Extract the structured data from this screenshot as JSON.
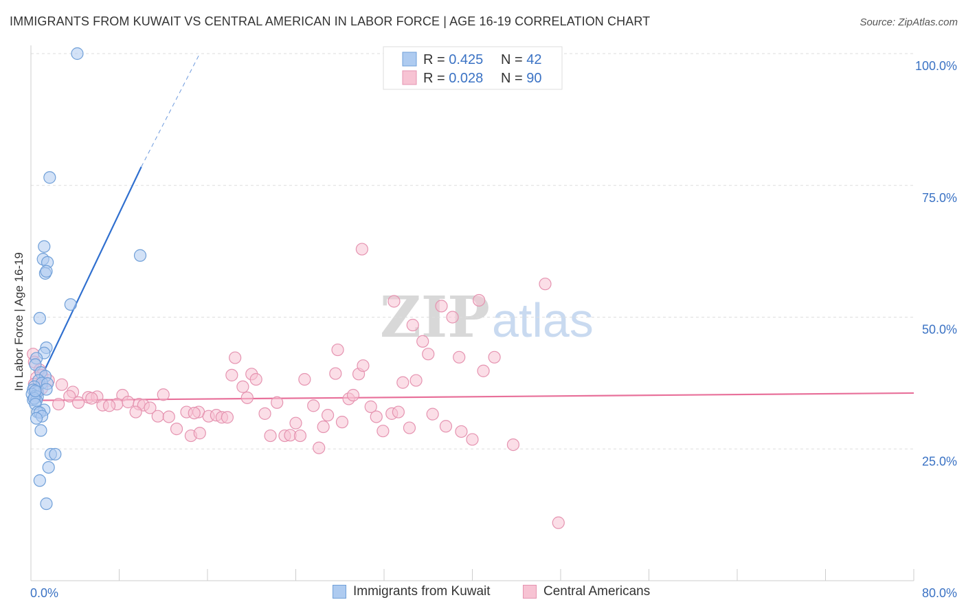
{
  "title": "IMMIGRANTS FROM KUWAIT VS CENTRAL AMERICAN IN LABOR FORCE | AGE 16-19 CORRELATION CHART",
  "source": "Source: ZipAtlas.com",
  "watermark": {
    "part1": "ZIP",
    "part2": "atlas"
  },
  "legend_top": [
    {
      "r_label": "R = ",
      "r_value": "0.425",
      "n_label": "N = ",
      "n_value": "42"
    },
    {
      "r_label": "R = ",
      "r_value": "0.028",
      "n_label": "N = ",
      "n_value": "90"
    }
  ],
  "legend_bottom": [
    {
      "label": "Immigrants from Kuwait"
    },
    {
      "label": "Central Americans"
    }
  ],
  "colors": {
    "kuwait_fill": "#aecbf0",
    "kuwait_stroke": "#6f9fd8",
    "kuwait_line": "#2f6fcf",
    "central_fill": "#f7c3d3",
    "central_stroke": "#e593b0",
    "central_line": "#e8709a",
    "axis_text": "#3a72c4",
    "grid": "#dddddd"
  },
  "chart_data": {
    "type": "scatter",
    "title": "IMMIGRANTS FROM KUWAIT VS CENTRAL AMERICAN IN LABOR FORCE | AGE 16-19 CORRELATION CHART",
    "xlabel": "",
    "ylabel": "In Labor Force | Age 16-19",
    "xlim": [
      0,
      80
    ],
    "ylim": [
      0,
      102
    ],
    "x_tick_labels": [
      "0.0%",
      "80.0%"
    ],
    "y_ticks": [
      25,
      50,
      75,
      100
    ],
    "y_tick_labels": [
      "25.0%",
      "50.0%",
      "75.0%",
      "100.0%"
    ],
    "grid": true,
    "legend_position": "top-center",
    "series": [
      {
        "name": "Immigrants from Kuwait",
        "r": 0.425,
        "n": 42,
        "trend": {
          "x": [
            0,
            10.0
          ],
          "y": [
            34.5,
            78.5
          ],
          "dashed_to": [
            15.3,
            100.0
          ]
        },
        "points": [
          [
            4.2,
            100.0
          ],
          [
            1.7,
            76.5
          ],
          [
            9.9,
            61.7
          ],
          [
            1.2,
            63.4
          ],
          [
            1.1,
            61.0
          ],
          [
            1.5,
            60.4
          ],
          [
            1.3,
            58.3
          ],
          [
            1.4,
            58.7
          ],
          [
            3.6,
            52.4
          ],
          [
            0.8,
            49.8
          ],
          [
            1.4,
            44.2
          ],
          [
            1.2,
            43.2
          ],
          [
            0.5,
            42.2
          ],
          [
            0.4,
            41.0
          ],
          [
            0.9,
            39.5
          ],
          [
            1.3,
            38.8
          ],
          [
            0.7,
            38.0
          ],
          [
            1.0,
            37.5
          ],
          [
            1.5,
            37.4
          ],
          [
            0.3,
            36.8
          ],
          [
            0.2,
            36.2
          ],
          [
            0.6,
            35.8
          ],
          [
            1.4,
            36.3
          ],
          [
            0.1,
            35.4
          ],
          [
            0.4,
            35.0
          ],
          [
            0.6,
            34.9
          ],
          [
            0.2,
            34.3
          ],
          [
            0.5,
            34.2
          ],
          [
            0.3,
            34.6
          ],
          [
            0.4,
            33.5
          ],
          [
            1.2,
            32.4
          ],
          [
            0.6,
            32.0
          ],
          [
            0.8,
            31.9
          ],
          [
            1.0,
            31.2
          ],
          [
            0.5,
            30.8
          ],
          [
            0.9,
            28.5
          ],
          [
            1.8,
            24.0
          ],
          [
            2.2,
            24.0
          ],
          [
            1.6,
            21.5
          ],
          [
            0.8,
            19.0
          ],
          [
            1.4,
            14.6
          ],
          [
            0.4,
            36.0
          ]
        ]
      },
      {
        "name": "Central Americans",
        "r": 0.028,
        "n": 90,
        "trend": {
          "x": [
            0,
            80
          ],
          "y": [
            34.2,
            35.6
          ]
        },
        "points": [
          [
            0.2,
            43.0
          ],
          [
            0.3,
            41.5
          ],
          [
            0.8,
            40.0
          ],
          [
            1.0,
            39.0
          ],
          [
            0.5,
            38.5
          ],
          [
            1.6,
            38.0
          ],
          [
            0.3,
            37.3
          ],
          [
            2.8,
            37.2
          ],
          [
            1.0,
            36.5
          ],
          [
            0.5,
            35.8
          ],
          [
            3.8,
            35.8
          ],
          [
            3.5,
            35.0
          ],
          [
            5.2,
            34.8
          ],
          [
            6.0,
            34.9
          ],
          [
            5.5,
            34.6
          ],
          [
            8.3,
            35.2
          ],
          [
            12.0,
            35.3
          ],
          [
            2.5,
            33.5
          ],
          [
            4.3,
            33.8
          ],
          [
            6.5,
            33.3
          ],
          [
            7.8,
            33.5
          ],
          [
            8.8,
            33.9
          ],
          [
            7.1,
            33.2
          ],
          [
            9.8,
            33.5
          ],
          [
            10.2,
            33.3
          ],
          [
            10.8,
            32.8
          ],
          [
            9.5,
            32.0
          ],
          [
            11.5,
            31.2
          ],
          [
            12.5,
            31.1
          ],
          [
            14.1,
            32.0
          ],
          [
            15.2,
            32.0
          ],
          [
            16.1,
            31.2
          ],
          [
            16.8,
            31.4
          ],
          [
            17.3,
            31.0
          ],
          [
            14.8,
            31.8
          ],
          [
            17.8,
            31.0
          ],
          [
            13.2,
            28.8
          ],
          [
            14.5,
            27.5
          ],
          [
            15.3,
            28.0
          ],
          [
            18.5,
            42.3
          ],
          [
            18.2,
            39.0
          ],
          [
            19.2,
            36.8
          ],
          [
            19.6,
            34.7
          ],
          [
            20.0,
            39.2
          ],
          [
            20.4,
            38.2
          ],
          [
            21.2,
            31.7
          ],
          [
            21.7,
            27.5
          ],
          [
            22.3,
            33.8
          ],
          [
            23.0,
            27.5
          ],
          [
            23.5,
            27.6
          ],
          [
            24.0,
            29.9
          ],
          [
            24.4,
            27.5
          ],
          [
            24.8,
            38.2
          ],
          [
            25.6,
            33.2
          ],
          [
            26.1,
            25.2
          ],
          [
            26.5,
            29.2
          ],
          [
            26.9,
            31.4
          ],
          [
            27.6,
            39.3
          ],
          [
            27.8,
            43.8
          ],
          [
            28.2,
            30.1
          ],
          [
            28.8,
            34.5
          ],
          [
            29.2,
            35.2
          ],
          [
            29.7,
            39.2
          ],
          [
            30.1,
            40.8
          ],
          [
            30.8,
            33.0
          ],
          [
            31.3,
            31.1
          ],
          [
            31.9,
            28.4
          ],
          [
            32.7,
            31.7
          ],
          [
            32.9,
            53.0
          ],
          [
            33.3,
            32.0
          ],
          [
            33.7,
            37.6
          ],
          [
            34.3,
            29.0
          ],
          [
            34.9,
            38.0
          ],
          [
            34.6,
            48.5
          ],
          [
            35.5,
            45.4
          ],
          [
            36.0,
            43.0
          ],
          [
            36.4,
            31.6
          ],
          [
            37.2,
            52.1
          ],
          [
            37.6,
            29.3
          ],
          [
            38.2,
            50.0
          ],
          [
            38.8,
            42.4
          ],
          [
            39.0,
            28.3
          ],
          [
            40.0,
            26.8
          ],
          [
            40.6,
            53.2
          ],
          [
            41.0,
            39.8
          ],
          [
            30.0,
            62.9
          ],
          [
            46.6,
            56.3
          ],
          [
            42.0,
            42.4
          ],
          [
            43.7,
            25.8
          ],
          [
            47.8,
            11.0
          ]
        ]
      }
    ]
  }
}
